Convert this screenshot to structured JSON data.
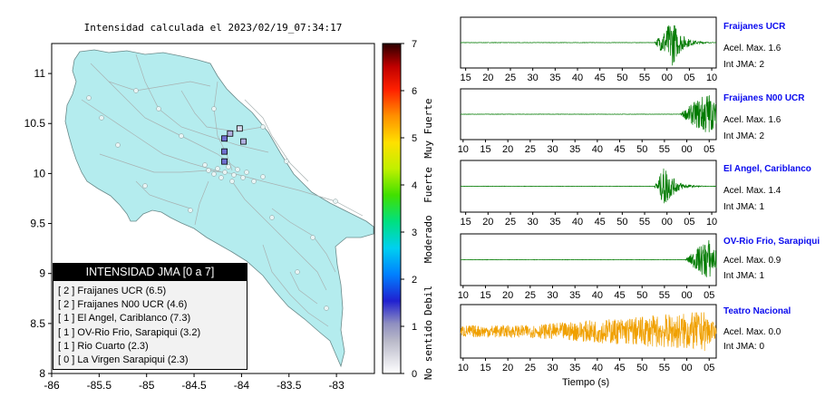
{
  "map": {
    "title": "Intensidad calculada el 2023/02/19_07:34:17",
    "lon_ticks": [
      "-86",
      "-85.5",
      "-85",
      "-84.5",
      "-84",
      "-83.5",
      "-83"
    ],
    "lat_ticks": [
      "11",
      "10.5",
      "10",
      "9.5",
      "9",
      "8.5",
      "8"
    ],
    "land_color": "#b4ecee",
    "legend_title": "INTENSIDAD JMA [0 a 7]",
    "legend_items": [
      "[ 2 ]  Fraijanes UCR (6.5)",
      "[ 2 ]  Fraijanes N00 UCR (4.6)",
      "[ 1 ]  El Angel, Cariblanco (7.3)",
      "[ 1 ]  OV-Rio Frio, Sarapiqui (3.2)",
      "[ 1 ]  Rio Cuarto (2.3)",
      "[ 0 ]  La Virgen Sarapiqui (2.3)"
    ]
  },
  "colorbar": {
    "ticks": [
      "0",
      "1",
      "2",
      "3",
      "4",
      "5",
      "6",
      "7"
    ],
    "labels": [
      "No sentido",
      "Debil",
      "Moderado",
      "Fuerte",
      "Muy Fuerte"
    ]
  },
  "stations": [
    {
      "name": "Fraijanes UCR",
      "acel": "Acel. Max. 1.6",
      "int": "Int JMA: 2",
      "ticks": [
        "15",
        "20",
        "25",
        "30",
        "35",
        "40",
        "45",
        "50",
        "55",
        "00",
        "05",
        "10"
      ],
      "color": "#007a00"
    },
    {
      "name": "Fraijanes N00 UCR",
      "acel": "Acel. Max. 1.6",
      "int": "Int JMA: 2",
      "ticks": [
        "10",
        "15",
        "20",
        "25",
        "30",
        "35",
        "40",
        "45",
        "50",
        "55",
        "00",
        "05"
      ],
      "color": "#007a00"
    },
    {
      "name": "El Angel, Cariblanco",
      "acel": "Acel. Max. 1.4",
      "int": "Int JMA: 1",
      "ticks": [
        "15",
        "20",
        "25",
        "30",
        "35",
        "40",
        "45",
        "50",
        "55",
        "00",
        "05",
        "10"
      ],
      "color": "#007a00"
    },
    {
      "name": "OV-Rio Frio, Sarapiqui",
      "acel": "Acel. Max. 0.9",
      "int": "Int JMA: 1",
      "ticks": [
        "10",
        "15",
        "20",
        "25",
        "30",
        "35",
        "40",
        "45",
        "50",
        "55",
        "00",
        "05"
      ],
      "color": "#007a00"
    },
    {
      "name": "Teatro Nacional",
      "acel": "Acel. Max. 0.0",
      "int": "Int JMA: 0",
      "ticks": [
        "10",
        "15",
        "20",
        "25",
        "30",
        "35",
        "40",
        "45",
        "50",
        "55",
        "00",
        "05"
      ],
      "color": "#f0a000"
    }
  ],
  "seis_xlabel": "Tiempo (s)",
  "chart_data": [
    {
      "type": "heatmap",
      "title": "Intensidad calculada el 2023/02/19_07:34:17",
      "xlim": [
        -86,
        -82.6
      ],
      "ylim": [
        8,
        11.3
      ],
      "colorbar_range": [
        0,
        7
      ],
      "station_markers": [
        {
          "lon": -84.18,
          "lat": 10.35,
          "intensity": 1.6
        },
        {
          "lon": -84.12,
          "lat": 10.4,
          "intensity": 1.2
        },
        {
          "lon": -84.02,
          "lat": 10.45,
          "intensity": 0.8
        },
        {
          "lon": -83.98,
          "lat": 10.32,
          "intensity": 1.0
        },
        {
          "lon": -84.18,
          "lat": 10.22,
          "intensity": 2.0
        },
        {
          "lon": -84.18,
          "lat": 10.12,
          "intensity": 2.0
        }
      ]
    },
    {
      "type": "line",
      "series": [
        {
          "name": "Fraijanes UCR",
          "onset_fraction": 0.76,
          "peak_fraction": 0.83,
          "peak_amplitude": 1.0
        },
        {
          "name": "Fraijanes N00 UCR",
          "onset_fraction": 0.86,
          "peak_fraction": 0.97,
          "peak_amplitude": 1.0
        },
        {
          "name": "El Angel, Cariblanco",
          "onset_fraction": 0.76,
          "peak_fraction": 0.8,
          "peak_amplitude": 0.9
        },
        {
          "name": "OV-Rio Frio, Sarapiqui",
          "onset_fraction": 0.88,
          "peak_fraction": 0.97,
          "peak_amplitude": 0.9
        },
        {
          "name": "Teatro Nacional",
          "onset_fraction": 0.0,
          "peak_fraction": 0.96,
          "peak_amplitude": 0.8,
          "noise_level": 0.25
        }
      ]
    }
  ]
}
